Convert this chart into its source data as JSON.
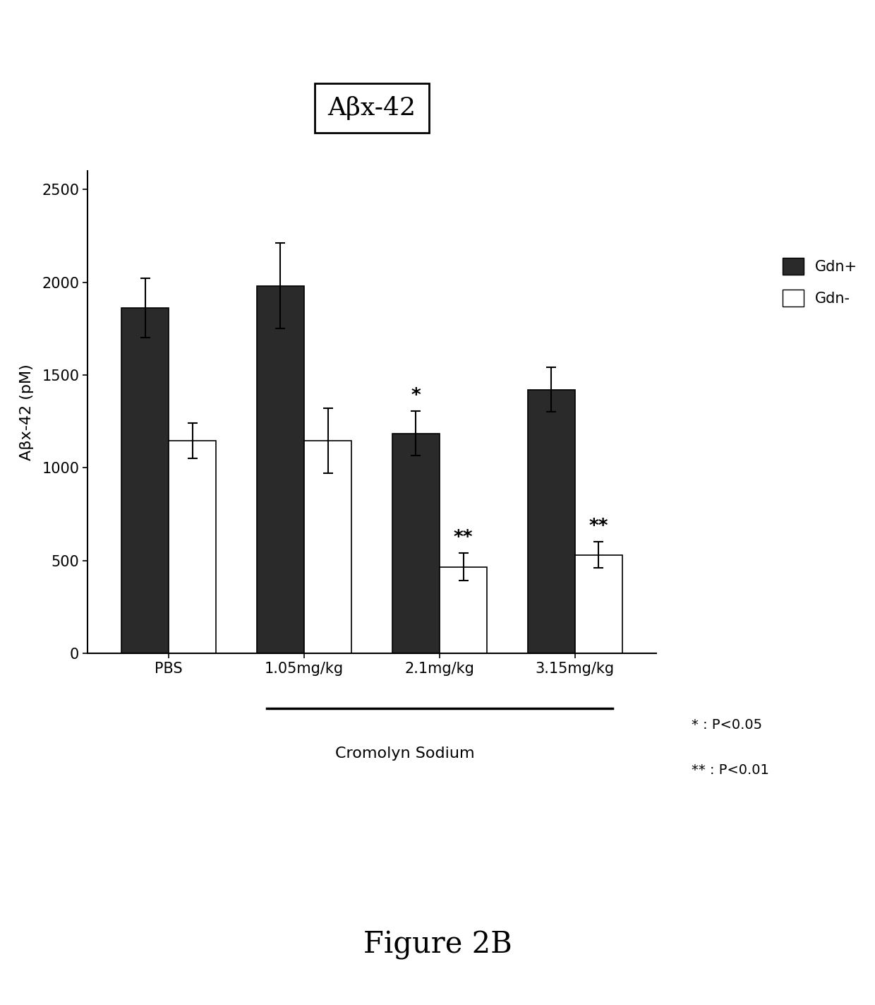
{
  "title": "Aβx-42",
  "ylabel": "Aβx-42 (pM)",
  "xlabel_main": "Cromolyn Sodium",
  "figure_label": "Figure 2B",
  "categories": [
    "PBS",
    "1.05mg/kg",
    "2.1mg/kg",
    "3.15mg/kg"
  ],
  "gdn_plus": [
    1860,
    1980,
    1185,
    1420
  ],
  "gdn_minus": [
    1145,
    1145,
    465,
    530
  ],
  "gdn_plus_err": [
    160,
    230,
    120,
    120
  ],
  "gdn_minus_err": [
    95,
    175,
    75,
    70
  ],
  "ylim": [
    0,
    2600
  ],
  "yticks": [
    0,
    500,
    1000,
    1500,
    2000,
    2500
  ],
  "bar_width": 0.35,
  "gdn_plus_color": "#2a2a2a",
  "gdn_minus_color": "#ffffff",
  "legend_gdn_plus": "Gdn+",
  "legend_gdn_minus": "Gdn-",
  "significance_gdn_plus": [
    "",
    "",
    "*",
    ""
  ],
  "significance_gdn_minus": [
    "",
    "",
    "**",
    "**"
  ],
  "stat_note_1": "* : P<0.05",
  "stat_note_2": "** : P<0.01",
  "background_color": "#ffffff",
  "edge_color": "#000000"
}
